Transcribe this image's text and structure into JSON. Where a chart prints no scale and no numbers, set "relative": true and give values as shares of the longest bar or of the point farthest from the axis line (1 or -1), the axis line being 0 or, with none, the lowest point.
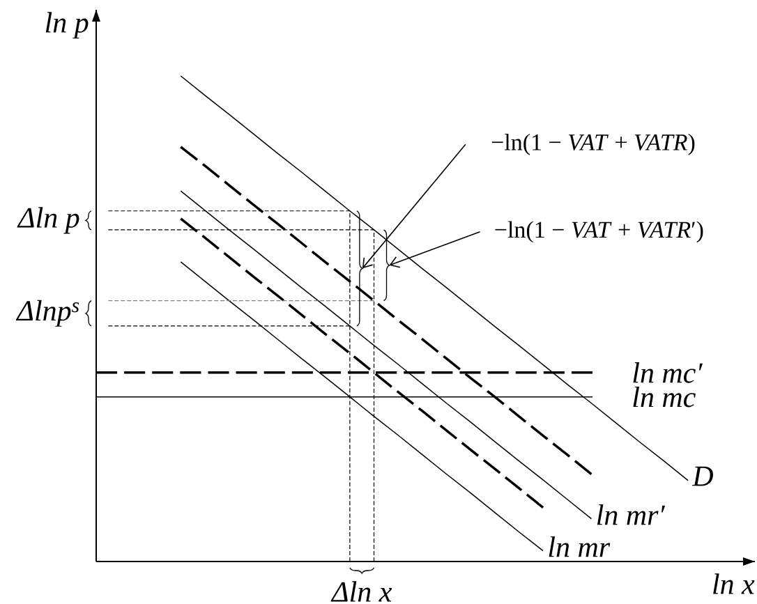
{
  "chart_data": {
    "type": "line",
    "relative": true,
    "xlabel": "ln x",
    "ylabel": "ln p",
    "categories": [
      null,
      null,
      null,
      null,
      null,
      null,
      null,
      null,
      null,
      null,
      null,
      null,
      null,
      null,
      null,
      null,
      null,
      null,
      null,
      null,
      null,
      null,
      null,
      null,
      null
    ],
    "series": [
      {
        "name": "D",
        "color": "#000000",
        "line_style": "solid",
        "values": [
          null,
          null,
          null,
          1,
          0.96,
          0.921,
          0.881,
          0.841,
          0.802,
          0.762,
          0.722,
          0.683,
          0.643,
          0.603,
          0.564,
          0.524,
          0.484,
          0.445,
          0.405,
          0.365,
          0.326,
          0.286,
          0.246,
          0.207,
          0.167
        ]
      },
      {
        "color": "#000000",
        "line_style": "dashed",
        "values": [
          null,
          null,
          null,
          0.854,
          0.815,
          0.775,
          0.735,
          0.696,
          0.656,
          0.616,
          0.577,
          0.537,
          0.497,
          0.458,
          0.418,
          0.378,
          0.339,
          0.299,
          0.259,
          0.22,
          0.18,
          null,
          null,
          null,
          null
        ]
      },
      {
        "name": "ln mr′",
        "color": "#000000",
        "line_style": "solid",
        "values": [
          null,
          null,
          null,
          0.763,
          0.723,
          0.683,
          0.644,
          0.604,
          0.564,
          0.525,
          0.485,
          0.445,
          0.406,
          0.366,
          0.326,
          0.287,
          0.247,
          0.207,
          0.168,
          0.128,
          0.088,
          null,
          null,
          null,
          null
        ]
      },
      {
        "color": "#000000",
        "line_style": "dashed",
        "values": [
          null,
          null,
          null,
          0.706,
          0.667,
          0.627,
          0.587,
          0.548,
          0.508,
          0.468,
          0.429,
          0.389,
          0.349,
          0.31,
          0.27,
          0.23,
          0.191,
          0.151,
          0.111,
          null,
          null,
          null,
          null,
          null,
          null
        ]
      },
      {
        "name": "ln mr",
        "color": "#000000",
        "line_style": "solid",
        "values": [
          null,
          null,
          null,
          0.617,
          0.577,
          0.537,
          0.498,
          0.458,
          0.418,
          0.379,
          0.339,
          0.299,
          0.26,
          0.22,
          0.18,
          0.141,
          0.101,
          0.061,
          0.022,
          null,
          null,
          null,
          null,
          null,
          null
        ]
      },
      {
        "type": "step",
        "color": "#000000",
        "line_style": "dotted",
        "values": [
          0.722,
          0.722,
          0.722,
          0.722,
          0.722,
          0.722,
          0.722,
          0.722,
          0.722,
          0.722,
          0,
          null,
          null,
          null,
          null,
          null,
          null,
          null,
          null,
          null,
          null,
          null,
          null,
          null,
          null
        ]
      },
      {
        "type": "step",
        "color": "#000000",
        "line_style": "dotted",
        "values": [
          0.683,
          0.683,
          0.683,
          0.683,
          0.683,
          0.683,
          0.683,
          0.683,
          0.683,
          0.683,
          0.683,
          0,
          null,
          null,
          null,
          null,
          null,
          null,
          null,
          null,
          null,
          null,
          null,
          null,
          null
        ]
      },
      {
        "color": "#808080",
        "line_style": "dotted",
        "values": [
          0.537,
          0.537,
          0.537,
          0.537,
          0.537,
          0.537,
          0.537,
          0.537,
          0.537,
          0.537,
          0.537,
          0.537,
          null,
          null,
          null,
          null,
          null,
          null,
          null,
          null,
          null,
          null,
          null,
          null,
          null
        ]
      },
      {
        "color": "#000000",
        "line_style": "dotted",
        "values": [
          0.485,
          0.485,
          0.485,
          0.485,
          0.485,
          0.485,
          0.485,
          0.485,
          0.485,
          0.485,
          0.485,
          null,
          null,
          null,
          null,
          null,
          null,
          null,
          null,
          null,
          null,
          null,
          null,
          null,
          null
        ]
      }
    ],
    "ref_lines": [
      {
        "axis": "y",
        "value": 0.389,
        "label": "ln mc′",
        "color": "#000000",
        "line_style": "dashed"
      },
      {
        "axis": "y",
        "value": 0.339,
        "label": "ln mc",
        "color": "#000000",
        "line_style": "solid"
      }
    ],
    "annotations": [
      "−ln(1 − *VAT* + *VATR*)",
      "−ln(1 − *VAT* + *VATR*′)",
      "Δln p",
      "Δlnp$^{s}$",
      "Δln x"
    ]
  }
}
